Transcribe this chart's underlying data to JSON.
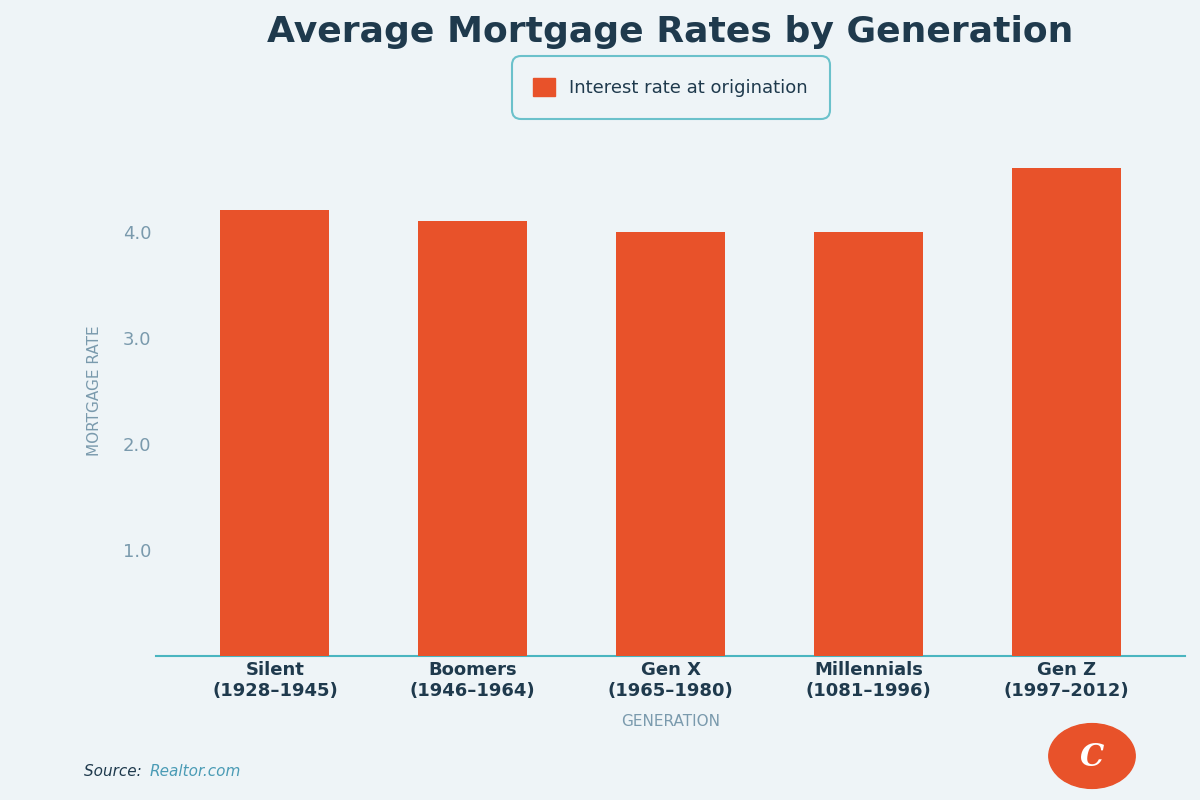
{
  "title": "Average Mortgage Rates by Generation",
  "categories": [
    "Silent\n(1928–1945)",
    "Boomers\n(1946–1964)",
    "Gen X\n(1965–1980)",
    "Millennials\n(1081–1996)",
    "Gen Z\n(1997–2012)"
  ],
  "values": [
    4.2,
    4.1,
    4.0,
    4.0,
    4.6
  ],
  "bar_color": "#E8522A",
  "background_color": "#EEF4F7",
  "title_color": "#1F3A4D",
  "axis_label_color": "#7A9AAD",
  "tick_color": "#7A9AAD",
  "xlabel": "GENERATION",
  "ylabel": "MORTGAGE RATE",
  "ylim": [
    0,
    5.0
  ],
  "yticks": [
    1.0,
    2.0,
    3.0,
    4.0
  ],
  "legend_label": "Interest rate at origination",
  "source_text": "Source: ",
  "source_link": "Realtor.com",
  "source_color": "#1F3A4D",
  "source_link_color": "#4A9BB5",
  "legend_border_color": "#4AB5C0",
  "axline_color": "#4AB5C0"
}
